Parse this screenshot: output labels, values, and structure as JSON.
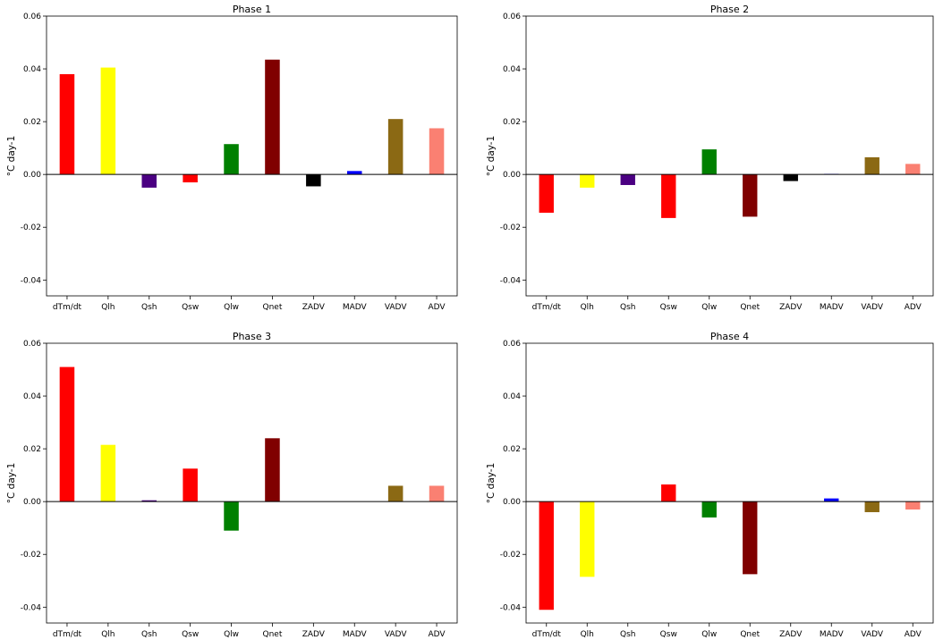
{
  "figure": {
    "ylabel": "°C day-1",
    "ylim": [
      -0.046,
      0.06
    ],
    "yticks": [
      -0.04,
      -0.02,
      0.0,
      0.02,
      0.04,
      0.06
    ],
    "ytick_labels": [
      "-0.04",
      "-0.02",
      "0.00",
      "0.02",
      "0.04",
      "0.06"
    ],
    "categories": [
      "dTm/dt",
      "Qlh",
      "Qsh",
      "Qsw",
      "Qlw",
      "Qnet",
      "ZADV",
      "MADV",
      "VADV",
      "ADV"
    ],
    "bar_colors": [
      "#ff0000",
      "#ffff00",
      "#4b0082",
      "#ff0000",
      "#008000",
      "#800000",
      "#000000",
      "#0000ff",
      "#8b6914",
      "#fa8072"
    ]
  },
  "chart_data": [
    {
      "type": "bar",
      "title": "Phase 1",
      "categories": [
        "dTm/dt",
        "Qlh",
        "Qsh",
        "Qsw",
        "Qlw",
        "Qnet",
        "ZADV",
        "MADV",
        "VADV",
        "ADV"
      ],
      "values": [
        0.038,
        0.0405,
        -0.005,
        -0.003,
        0.0115,
        0.0435,
        -0.0045,
        0.0013,
        0.021,
        0.0175
      ],
      "ylabel": "°C day-1",
      "ylim": [
        -0.046,
        0.06
      ]
    },
    {
      "type": "bar",
      "title": "Phase 2",
      "categories": [
        "dTm/dt",
        "Qlh",
        "Qsh",
        "Qsw",
        "Qlw",
        "Qnet",
        "ZADV",
        "MADV",
        "VADV",
        "ADV"
      ],
      "values": [
        -0.0145,
        -0.005,
        -0.004,
        -0.0165,
        0.0095,
        -0.016,
        -0.0025,
        0.0002,
        0.0065,
        0.004
      ],
      "ylabel": "°C day-1",
      "ylim": [
        -0.046,
        0.06
      ]
    },
    {
      "type": "bar",
      "title": "Phase 3",
      "categories": [
        "dTm/dt",
        "Qlh",
        "Qsh",
        "Qsw",
        "Qlw",
        "Qnet",
        "ZADV",
        "MADV",
        "VADV",
        "ADV"
      ],
      "values": [
        0.051,
        0.0215,
        0.0005,
        0.0125,
        -0.011,
        0.024,
        0.0,
        0.0,
        0.006,
        0.006
      ],
      "ylabel": "°C day-1",
      "ylim": [
        -0.046,
        0.06
      ]
    },
    {
      "type": "bar",
      "title": "Phase 4",
      "categories": [
        "dTm/dt",
        "Qlh",
        "Qsh",
        "Qsw",
        "Qlw",
        "Qnet",
        "ZADV",
        "MADV",
        "VADV",
        "ADV"
      ],
      "values": [
        -0.041,
        -0.0285,
        0.0,
        0.0065,
        -0.006,
        -0.0275,
        0.0,
        0.0012,
        -0.004,
        -0.003
      ],
      "ylabel": "°C day-1",
      "ylim": [
        -0.046,
        0.06
      ]
    }
  ]
}
